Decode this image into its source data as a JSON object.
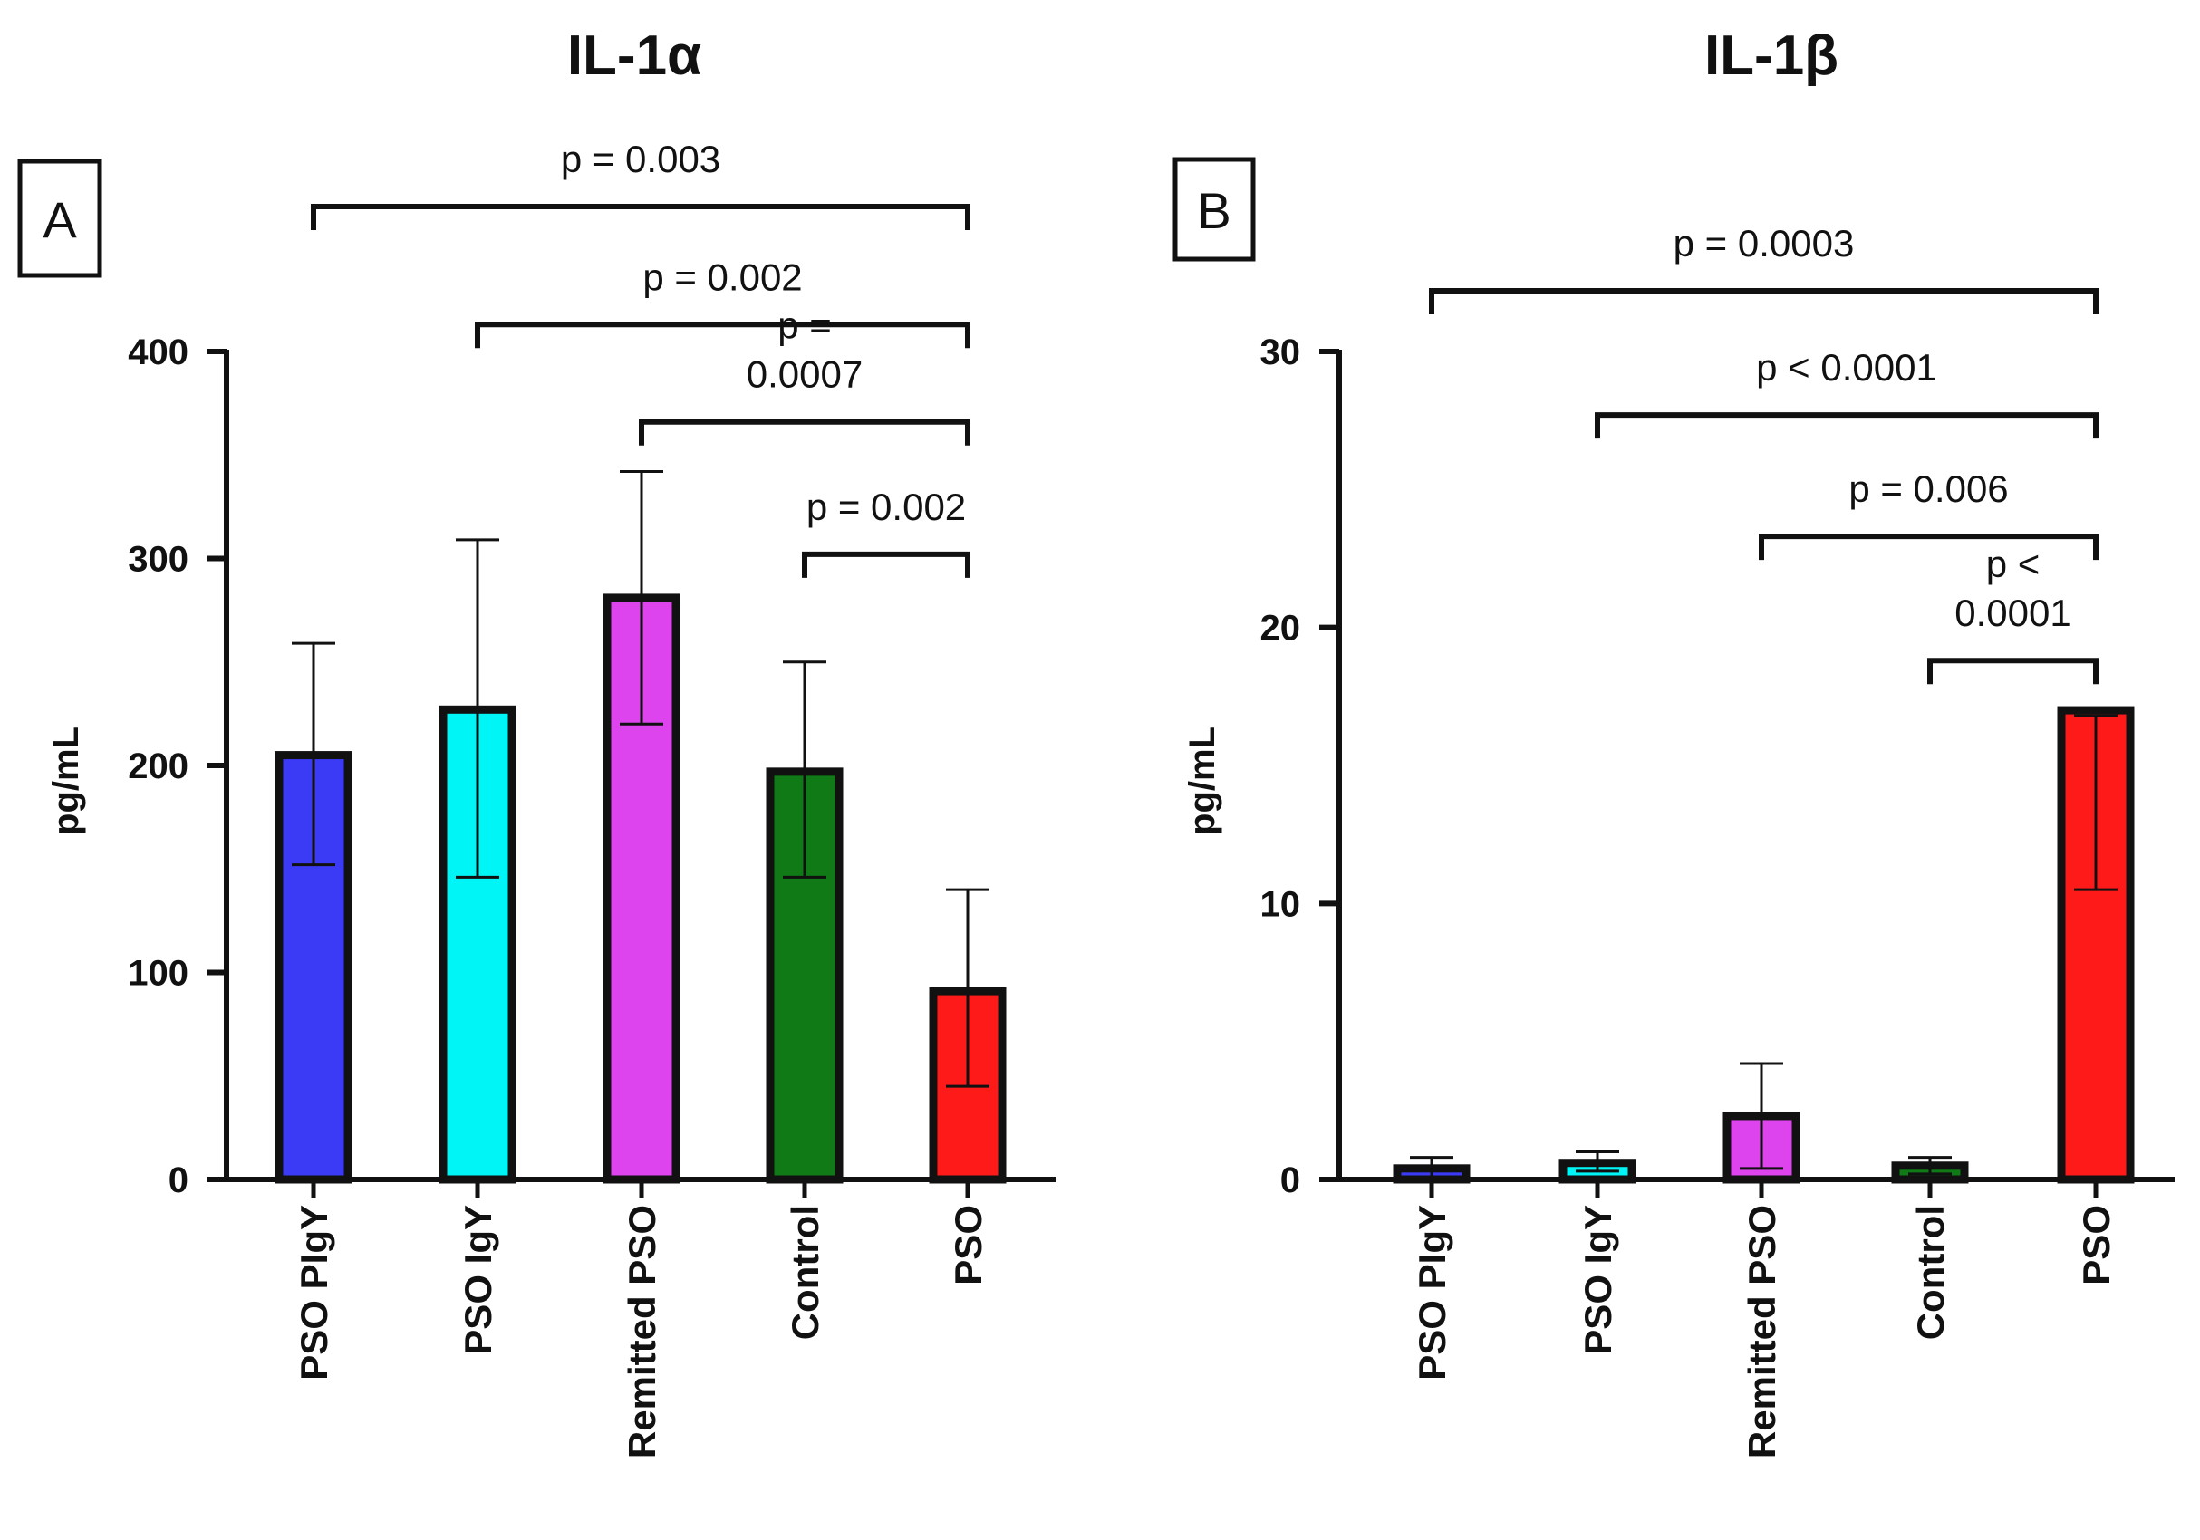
{
  "chart_data": [
    {
      "type": "bar",
      "panel": "A",
      "title": "IL-1α",
      "ylabel": "pg/mL",
      "xlabel": "",
      "ylim": [
        0,
        400
      ],
      "yticks": [
        0,
        100,
        200,
        300,
        400
      ],
      "categories": [
        "PSO PIgY",
        "PSO IgY",
        "Remitted PSO",
        "Control",
        "PSO"
      ],
      "values": [
        205,
        227,
        281,
        197,
        91
      ],
      "error_lower": [
        152,
        146,
        220,
        146,
        45
      ],
      "error_upper": [
        259,
        309,
        342,
        250,
        140
      ],
      "colors": [
        "#3b3bf5",
        "#00f6f6",
        "#dd44ee",
        "#0f7a16",
        "#ff1a1a"
      ],
      "annotations": [
        {
          "text": "p = 0.003",
          "from": 0,
          "to": 4,
          "level": 470
        },
        {
          "text": "p = 0.002",
          "from": 1,
          "to": 4,
          "level": 413
        },
        {
          "text_lines": [
            "p =",
            "0.0007"
          ],
          "from": 2,
          "to": 4,
          "level": 366
        },
        {
          "text": "p = 0.002",
          "from": 3,
          "to": 4,
          "level": 302
        }
      ]
    },
    {
      "type": "bar",
      "panel": "B",
      "title": "IL-1β",
      "ylabel": "pg/mL",
      "xlabel": "",
      "ylim": [
        0,
        30
      ],
      "yticks": [
        0,
        10,
        20,
        30
      ],
      "categories": [
        "PSO PIgY",
        "PSO IgY",
        "Remitted PSO",
        "Control",
        "PSO"
      ],
      "values": [
        0.4,
        0.6,
        2.3,
        0.5,
        17.0
      ],
      "error_lower": [
        0.1,
        0.3,
        0.4,
        0.2,
        10.5
      ],
      "error_upper": [
        0.8,
        1.0,
        4.2,
        0.8,
        16.8
      ],
      "colors": [
        "#3b3bf5",
        "#00f6f6",
        "#dd44ee",
        "#0f7a16",
        "#ff1a1a"
      ],
      "annotations": [
        {
          "text": "p = 0.0003",
          "from": 0,
          "to": 4,
          "level": 32.2
        },
        {
          "text": "p < 0.0001",
          "from": 1,
          "to": 4,
          "level": 27.7
        },
        {
          "text": "p = 0.006",
          "from": 2,
          "to": 4,
          "level": 23.3
        },
        {
          "text_lines": [
            "p <",
            "0.0001"
          ],
          "from": 3,
          "to": 4,
          "level": 18.8
        }
      ]
    }
  ]
}
